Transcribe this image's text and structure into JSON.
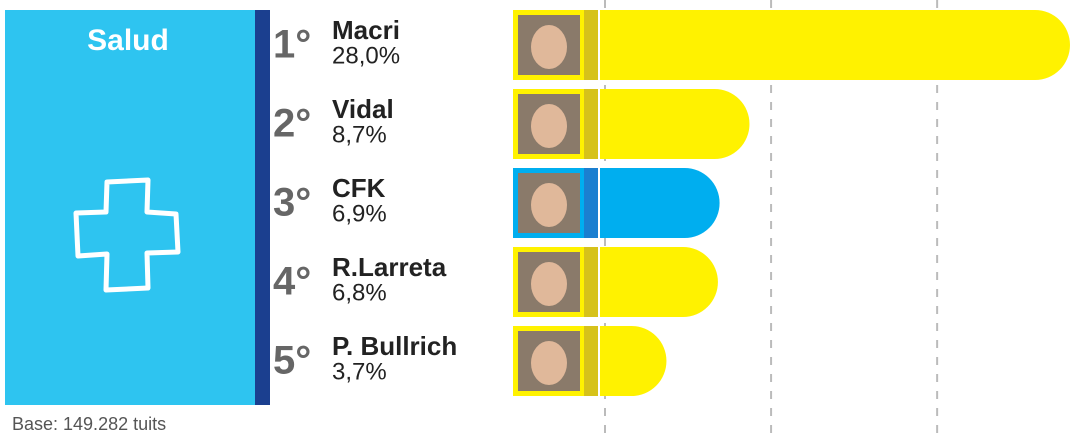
{
  "chart_data": {
    "type": "bar",
    "title": "Salud",
    "footnote": "Base: 149.282 tuits",
    "ranks": [
      "1°",
      "2°",
      "3°",
      "4°",
      "5°"
    ],
    "categories": [
      "Macri",
      "Vidal",
      "CFK",
      "R.Larreta",
      "P. Bullrich"
    ],
    "values": [
      28.0,
      8.7,
      6.9,
      6.8,
      3.7
    ],
    "value_labels": [
      "28,0%",
      "8,7%",
      "6,9%",
      "6,8%",
      "3,7%"
    ],
    "colors": [
      "#fff200",
      "#fff200",
      "#00aeef",
      "#fff200",
      "#fff200"
    ],
    "xlim": [
      0,
      28
    ],
    "xticks": [
      0,
      10,
      20
    ],
    "grid": true
  }
}
